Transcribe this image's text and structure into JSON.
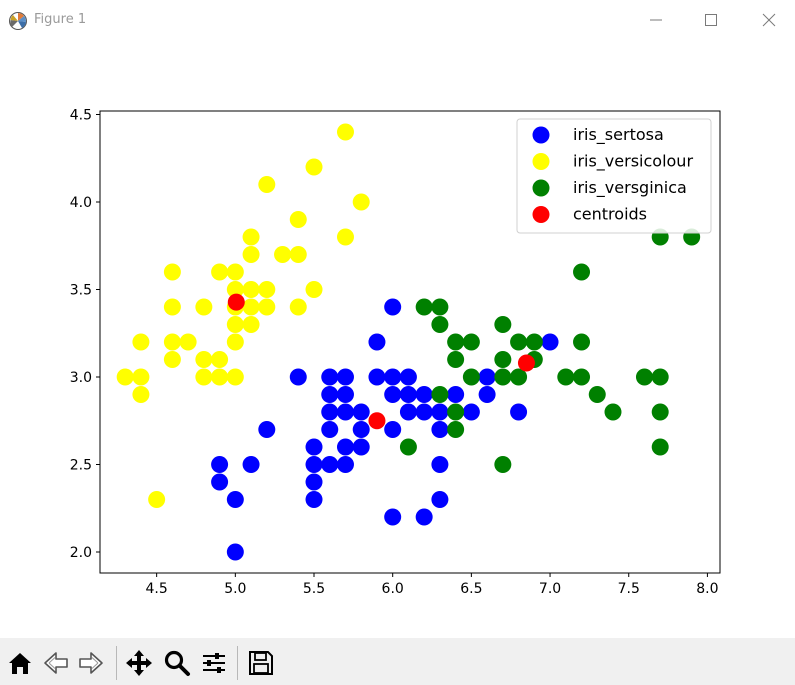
{
  "window": {
    "title": "Figure 1",
    "icon": "matplotlib-logo-icon",
    "controls": [
      "minimize-icon",
      "maximize-icon",
      "close-icon"
    ]
  },
  "toolbar": {
    "buttons": [
      {
        "name": "home-button",
        "icon": "home-icon"
      },
      {
        "name": "back-button",
        "icon": "back-arrow-icon"
      },
      {
        "name": "forward-button",
        "icon": "forward-arrow-icon"
      },
      {
        "name": "pan-button",
        "icon": "pan-move-icon"
      },
      {
        "name": "zoom-button",
        "icon": "zoom-magnifier-icon"
      },
      {
        "name": "configure-subplots-button",
        "icon": "sliders-icon"
      },
      {
        "name": "save-button",
        "icon": "save-floppy-icon"
      }
    ]
  },
  "chart_data": {
    "type": "scatter",
    "title": "",
    "xlabel": "",
    "ylabel": "",
    "xlim": [
      4.14,
      8.08
    ],
    "ylim": [
      1.88,
      4.52
    ],
    "xticks": [
      "4.5",
      "5.0",
      "5.5",
      "6.0",
      "6.5",
      "7.0",
      "7.5",
      "8.0"
    ],
    "yticks": [
      "2.0",
      "2.5",
      "3.0",
      "3.5",
      "4.0",
      "4.5"
    ],
    "grid": false,
    "legend_position": "top-right",
    "series": [
      {
        "name": "iris_sertosa",
        "color": "#0000ff",
        "points": [
          [
            5.0,
            2.0
          ],
          [
            4.9,
            2.4
          ],
          [
            4.9,
            2.5
          ],
          [
            5.0,
            2.3
          ],
          [
            5.1,
            2.5
          ],
          [
            5.2,
            2.7
          ],
          [
            5.4,
            3.0
          ],
          [
            5.5,
            2.3
          ],
          [
            5.5,
            2.4
          ],
          [
            5.5,
            2.5
          ],
          [
            5.5,
            2.6
          ],
          [
            5.6,
            2.5
          ],
          [
            5.6,
            2.7
          ],
          [
            5.6,
            2.8
          ],
          [
            5.6,
            2.9
          ],
          [
            5.6,
            3.0
          ],
          [
            5.7,
            2.5
          ],
          [
            5.7,
            2.6
          ],
          [
            5.7,
            2.8
          ],
          [
            5.7,
            2.9
          ],
          [
            5.7,
            3.0
          ],
          [
            5.8,
            2.6
          ],
          [
            5.8,
            2.7
          ],
          [
            5.8,
            2.8
          ],
          [
            5.9,
            3.0
          ],
          [
            5.9,
            3.2
          ],
          [
            6.0,
            2.2
          ],
          [
            6.0,
            2.7
          ],
          [
            6.0,
            2.9
          ],
          [
            6.0,
            3.0
          ],
          [
            6.0,
            3.4
          ],
          [
            6.1,
            2.8
          ],
          [
            6.1,
            2.9
          ],
          [
            6.1,
            3.0
          ],
          [
            6.2,
            2.2
          ],
          [
            6.2,
            2.8
          ],
          [
            6.2,
            2.9
          ],
          [
            6.3,
            2.3
          ],
          [
            6.3,
            2.5
          ],
          [
            6.3,
            2.7
          ],
          [
            6.3,
            2.8
          ],
          [
            6.4,
            2.9
          ],
          [
            6.5,
            2.8
          ],
          [
            6.6,
            2.9
          ],
          [
            6.6,
            3.0
          ],
          [
            6.8,
            2.8
          ],
          [
            7.0,
            3.2
          ]
        ]
      },
      {
        "name": "iris_versicolour",
        "color": "#ffff00",
        "points": [
          [
            4.3,
            3.0
          ],
          [
            4.4,
            2.9
          ],
          [
            4.4,
            3.0
          ],
          [
            4.4,
            3.2
          ],
          [
            4.5,
            2.3
          ],
          [
            4.6,
            3.1
          ],
          [
            4.6,
            3.2
          ],
          [
            4.6,
            3.4
          ],
          [
            4.6,
            3.6
          ],
          [
            4.7,
            3.2
          ],
          [
            4.8,
            3.0
          ],
          [
            4.8,
            3.1
          ],
          [
            4.8,
            3.4
          ],
          [
            4.9,
            3.0
          ],
          [
            4.9,
            3.1
          ],
          [
            4.9,
            3.6
          ],
          [
            5.0,
            3.0
          ],
          [
            5.0,
            3.2
          ],
          [
            5.0,
            3.3
          ],
          [
            5.0,
            3.4
          ],
          [
            5.0,
            3.5
          ],
          [
            5.0,
            3.6
          ],
          [
            5.1,
            3.3
          ],
          [
            5.1,
            3.4
          ],
          [
            5.1,
            3.5
          ],
          [
            5.1,
            3.7
          ],
          [
            5.1,
            3.8
          ],
          [
            5.2,
            3.4
          ],
          [
            5.2,
            3.5
          ],
          [
            5.2,
            4.1
          ],
          [
            5.3,
            3.7
          ],
          [
            5.4,
            3.4
          ],
          [
            5.4,
            3.7
          ],
          [
            5.4,
            3.9
          ],
          [
            5.5,
            3.5
          ],
          [
            5.5,
            4.2
          ],
          [
            5.7,
            3.8
          ],
          [
            5.7,
            4.4
          ],
          [
            5.8,
            4.0
          ]
        ]
      },
      {
        "name": "iris_versginica",
        "color": "#008000",
        "points": [
          [
            6.1,
            2.6
          ],
          [
            6.2,
            3.4
          ],
          [
            6.3,
            2.9
          ],
          [
            6.3,
            3.3
          ],
          [
            6.3,
            3.4
          ],
          [
            6.4,
            2.7
          ],
          [
            6.4,
            2.8
          ],
          [
            6.4,
            3.1
          ],
          [
            6.4,
            3.2
          ],
          [
            6.5,
            3.0
          ],
          [
            6.5,
            3.2
          ],
          [
            6.7,
            2.5
          ],
          [
            6.7,
            3.0
          ],
          [
            6.7,
            3.1
          ],
          [
            6.7,
            3.3
          ],
          [
            6.8,
            3.0
          ],
          [
            6.8,
            3.2
          ],
          [
            6.9,
            3.1
          ],
          [
            6.9,
            3.2
          ],
          [
            7.1,
            3.0
          ],
          [
            7.2,
            3.0
          ],
          [
            7.2,
            3.2
          ],
          [
            7.2,
            3.6
          ],
          [
            7.3,
            2.9
          ],
          [
            7.4,
            2.8
          ],
          [
            7.6,
            3.0
          ],
          [
            7.7,
            2.6
          ],
          [
            7.7,
            2.8
          ],
          [
            7.7,
            3.0
          ],
          [
            7.7,
            3.8
          ],
          [
            7.9,
            3.8
          ]
        ]
      },
      {
        "name": "centroids",
        "color": "#ff0000",
        "points": [
          [
            5.006,
            3.428
          ],
          [
            5.9,
            2.75
          ],
          [
            6.85,
            3.08
          ]
        ]
      }
    ]
  }
}
